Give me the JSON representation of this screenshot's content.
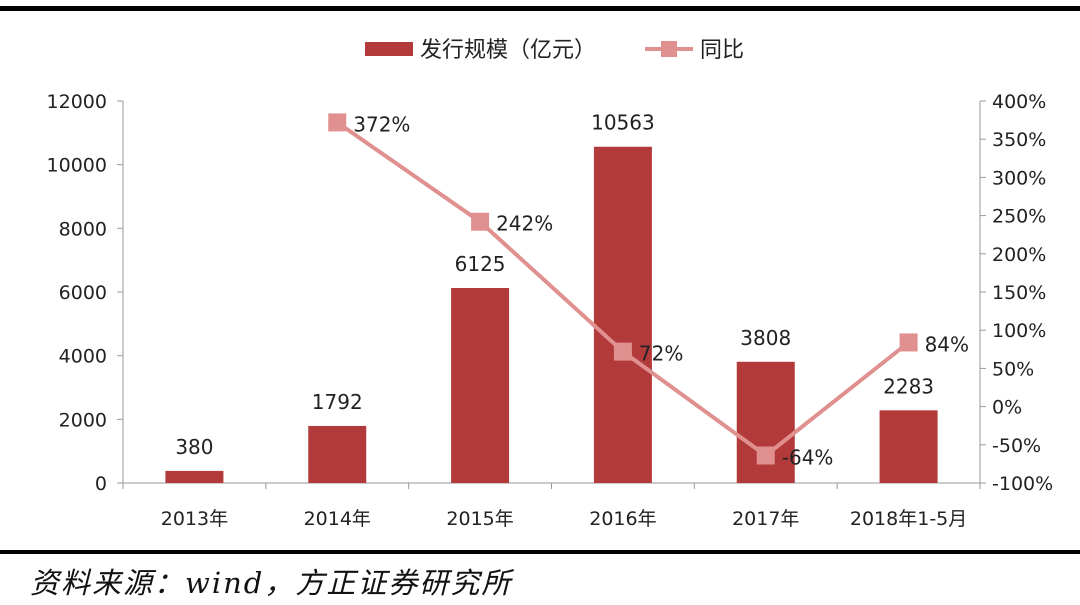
{
  "chart_data": {
    "type": "bar",
    "categories": [
      "2013年",
      "2014年",
      "2015年",
      "2016年",
      "2017年",
      "2018年1-5月"
    ],
    "series": [
      {
        "name": "发行规模（亿元）",
        "type": "bar",
        "axis": "left",
        "color": "#b23a3a",
        "values": [
          380,
          1792,
          6125,
          10563,
          3808,
          2283
        ],
        "labels": [
          "380",
          "1792",
          "6125",
          "10563",
          "3808",
          "2283"
        ]
      },
      {
        "name": "同比",
        "type": "line",
        "axis": "right",
        "color": "#e0908e",
        "values": [
          null,
          372,
          242,
          72,
          -64,
          84
        ],
        "labels": [
          "",
          "372%",
          "242%",
          "72%",
          "-64%",
          "84%"
        ]
      }
    ],
    "y_left": {
      "min": 0,
      "max": 12000,
      "ticks": [
        0,
        2000,
        4000,
        6000,
        8000,
        10000,
        12000
      ],
      "tick_labels": [
        "0",
        "2000",
        "4000",
        "6000",
        "8000",
        "10000",
        "12000"
      ]
    },
    "y_right": {
      "min": -100,
      "max": 400,
      "ticks": [
        -100,
        -50,
        0,
        50,
        100,
        150,
        200,
        250,
        300,
        350,
        400
      ],
      "tick_labels": [
        "-100%",
        "-50%",
        "0%",
        "50%",
        "100%",
        "150%",
        "200%",
        "250%",
        "300%",
        "350%",
        "400%"
      ]
    },
    "legend_position": "top-center",
    "grid": false
  },
  "source_note": "资料来源：wind，方正证券研究所"
}
